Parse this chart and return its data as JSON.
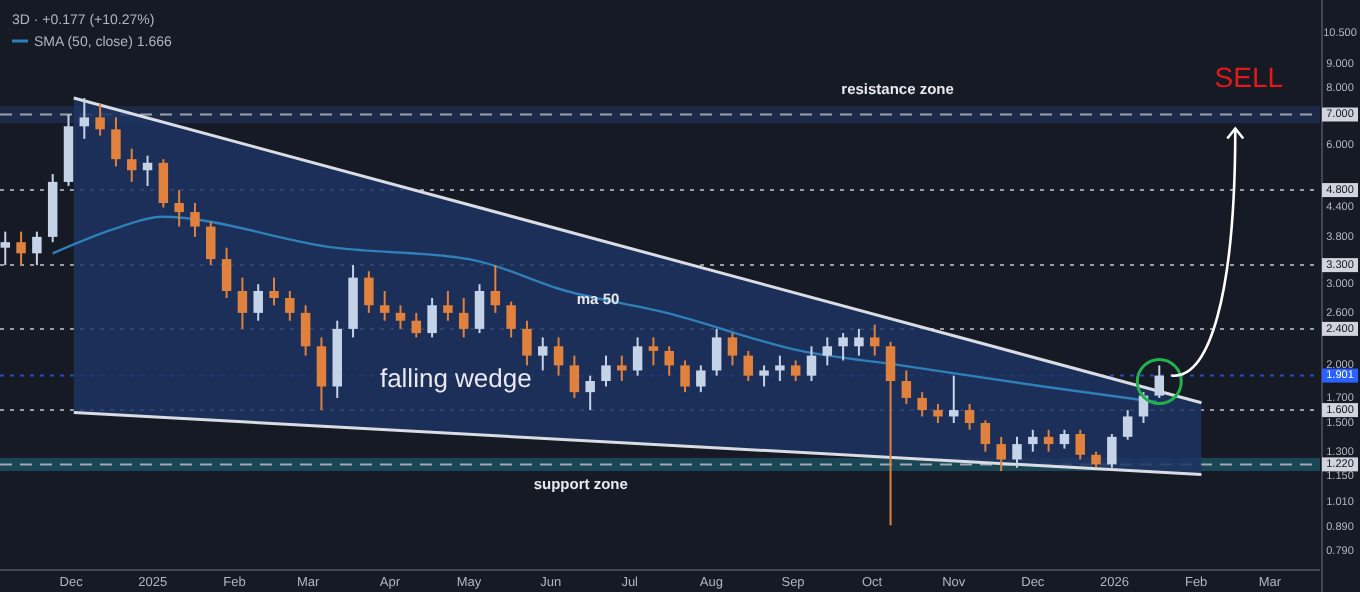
{
  "chart_data": {
    "type": "candlestick",
    "log": "y",
    "legend": "top left",
    "xlim": [
      "2024-11-04",
      "2026-03-20"
    ],
    "xticks": [
      {
        "value": "2024-12-01",
        "label": "Dec"
      },
      {
        "value": "2025-01-01",
        "label": "2025"
      },
      {
        "value": "2025-02-01",
        "label": "Feb"
      },
      {
        "value": "2025-03-01",
        "label": "Mar"
      },
      {
        "value": "2025-04-01",
        "label": "Apr"
      },
      {
        "value": "2025-05-01",
        "label": "May"
      },
      {
        "value": "2025-06-01",
        "label": "Jun"
      },
      {
        "value": "2025-07-01",
        "label": "Jul"
      },
      {
        "value": "2025-08-01",
        "label": "Aug"
      },
      {
        "value": "2025-09-01",
        "label": "Sep"
      },
      {
        "value": "2025-10-01",
        "label": "Oct"
      },
      {
        "value": "2025-11-01",
        "label": "Nov"
      },
      {
        "value": "2025-12-01",
        "label": "Dec"
      },
      {
        "value": "2026-01-01",
        "label": "2026"
      },
      {
        "value": "2026-02-01",
        "label": "Feb"
      },
      {
        "value": "2026-03-01",
        "label": "Mar"
      }
    ],
    "ylim": [
      0.72,
      12.4
    ],
    "yticks": [
      {
        "value": 10.5,
        "label": "10.500"
      },
      {
        "value": 9,
        "label": "9.000"
      },
      {
        "value": 8,
        "label": "8.000"
      },
      {
        "value": 6,
        "label": "6.000"
      },
      {
        "value": 4.4,
        "label": "4.400"
      },
      {
        "value": 3.8,
        "label": "3.800"
      },
      {
        "value": 3,
        "label": "3.000"
      },
      {
        "value": 2.6,
        "label": "2.600"
      },
      {
        "value": 2,
        "label": "2.000"
      },
      {
        "value": 1.7,
        "label": "1.700"
      },
      {
        "value": 1.5,
        "label": "1.500"
      },
      {
        "value": 1.3,
        "label": "1.300"
      },
      {
        "value": 1.15,
        "label": "1.150"
      },
      {
        "value": 1.01,
        "label": "1.010"
      },
      {
        "value": 0.89,
        "label": "0.890"
      },
      {
        "value": 0.79,
        "label": "0.790"
      }
    ],
    "bands": [
      {
        "axis": "y",
        "from": 6.7,
        "to": 7.3,
        "color": "#1c2a47",
        "label": "resistance zone"
      },
      {
        "axis": "y",
        "from": 1.18,
        "to": 1.26,
        "color": "#1b4655",
        "label": "support zone"
      }
    ],
    "ref_lines": [
      {
        "axis": "y",
        "value": 7,
        "label": "7.000",
        "color": "#d1d4dc",
        "line_style": "dashed"
      },
      {
        "axis": "y",
        "value": 4.8,
        "label": "4.800",
        "color": "#d1d4dc",
        "line_style": "dotted"
      },
      {
        "axis": "y",
        "value": 3.3,
        "label": "3.300",
        "color": "#d1d4dc",
        "line_style": "dotted"
      },
      {
        "axis": "y",
        "value": 2.4,
        "label": "2.400",
        "color": "#d1d4dc",
        "line_style": "dotted"
      },
      {
        "axis": "y",
        "value": 1.901,
        "label": "1.901",
        "color": "#2962ff",
        "line_style": "dotted"
      },
      {
        "axis": "y",
        "value": 1.6,
        "label": "1.600",
        "color": "#d1d4dc",
        "line_style": "dotted"
      },
      {
        "axis": "y",
        "value": 1.22,
        "label": "1.220",
        "color": "#d1d4dc",
        "line_style": "dashed"
      }
    ],
    "annotations": [
      "3D · +0.177 (+10.27%)",
      {
        "text": "falling wedge",
        "x": "2025-04-26",
        "y": 1.86
      },
      {
        "text": "ma 50",
        "x": "2025-06-19",
        "y": 2.77
      },
      {
        "text": "SELL",
        "x": "2026-02-21",
        "y": 7
      }
    ],
    "series": [
      {
        "type": "line",
        "color": "#d9dce3",
        "x": [
          "2024-12-02",
          "2026-02-03"
        ],
        "values": [
          7.6,
          1.66
        ]
      },
      {
        "type": "line",
        "color": "#d9dce3",
        "x": [
          "2024-12-02",
          "2026-02-03"
        ],
        "values": [
          1.58,
          1.16
        ]
      },
      {
        "type": "line",
        "name": "SMA (50, close) 1.666",
        "color": "#2f7fb8",
        "x": [
          "2024-11-24",
          "2024-12-20",
          "2025-01-04",
          "2025-03-11",
          "2025-05-01",
          "2025-06-07",
          "2025-07-15",
          "2025-09-04",
          "2025-10-12",
          "2025-12-05",
          "2026-01-17"
        ],
        "values": [
          3.5,
          4.0,
          4.2,
          3.6,
          3.4,
          2.9,
          2.6,
          2.15,
          2.0,
          1.8,
          1.666
        ]
      },
      {
        "x": [
          "2024-11-06",
          "2024-11-12",
          "2024-11-18",
          "2024-11-24",
          "2024-11-30",
          "2024-12-06",
          "2024-12-12",
          "2024-12-18",
          "2024-12-24",
          "2024-12-30",
          "2025-01-05",
          "2025-01-11",
          "2025-01-17",
          "2025-01-23",
          "2025-01-29",
          "2025-02-04",
          "2025-02-10",
          "2025-02-16",
          "2025-02-22",
          "2025-02-28",
          "2025-03-06",
          "2025-03-12",
          "2025-03-18",
          "2025-03-24",
          "2025-03-30",
          "2025-04-05",
          "2025-04-11",
          "2025-04-17",
          "2025-04-23",
          "2025-04-29",
          "2025-05-05",
          "2025-05-11",
          "2025-05-17",
          "2025-05-23",
          "2025-05-29",
          "2025-06-04",
          "2025-06-10",
          "2025-06-16",
          "2025-06-22",
          "2025-06-28",
          "2025-07-04",
          "2025-07-10",
          "2025-07-16",
          "2025-07-22",
          "2025-07-28",
          "2025-08-03",
          "2025-08-09",
          "2025-08-15",
          "2025-08-21",
          "2025-08-27",
          "2025-09-02",
          "2025-09-08",
          "2025-09-14",
          "2025-09-20",
          "2025-09-26",
          "2025-10-02",
          "2025-10-08",
          "2025-10-14",
          "2025-10-20",
          "2025-10-26",
          "2025-11-01",
          "2025-11-07",
          "2025-11-13",
          "2025-11-19",
          "2025-11-25",
          "2025-12-01",
          "2025-12-07",
          "2025-12-13",
          "2025-12-19",
          "2025-12-25",
          "2025-12-31",
          "2026-01-06",
          "2026-01-12",
          "2026-01-18"
        ],
        "ohlc": [
          [
            3.6,
            3.9,
            3.3,
            3.7
          ],
          [
            3.7,
            3.9,
            3.3,
            3.5
          ],
          [
            3.5,
            3.9,
            3.3,
            3.8
          ],
          [
            3.8,
            5.2,
            3.7,
            5.0
          ],
          [
            5.0,
            7.0,
            4.9,
            6.6
          ],
          [
            6.6,
            7.6,
            6.2,
            6.9
          ],
          [
            6.9,
            7.4,
            6.3,
            6.5
          ],
          [
            6.5,
            6.9,
            5.4,
            5.6
          ],
          [
            5.6,
            5.9,
            5.0,
            5.3
          ],
          [
            5.3,
            5.7,
            4.9,
            5.5
          ],
          [
            5.5,
            5.6,
            4.4,
            4.5
          ],
          [
            4.5,
            4.8,
            4.0,
            4.3
          ],
          [
            4.3,
            4.5,
            3.8,
            4.0
          ],
          [
            4.0,
            4.1,
            3.3,
            3.4
          ],
          [
            3.4,
            3.6,
            2.8,
            2.9
          ],
          [
            2.9,
            3.1,
            2.4,
            2.6
          ],
          [
            2.6,
            3.0,
            2.5,
            2.9
          ],
          [
            2.9,
            3.1,
            2.7,
            2.8
          ],
          [
            2.8,
            2.9,
            2.5,
            2.6
          ],
          [
            2.6,
            2.7,
            2.1,
            2.2
          ],
          [
            2.2,
            2.3,
            1.6,
            1.8
          ],
          [
            1.8,
            2.5,
            1.7,
            2.4
          ],
          [
            2.4,
            3.3,
            2.3,
            3.1
          ],
          [
            3.1,
            3.2,
            2.6,
            2.7
          ],
          [
            2.7,
            2.9,
            2.5,
            2.6
          ],
          [
            2.6,
            2.7,
            2.4,
            2.5
          ],
          [
            2.5,
            2.6,
            2.3,
            2.35
          ],
          [
            2.35,
            2.8,
            2.3,
            2.7
          ],
          [
            2.7,
            2.9,
            2.5,
            2.6
          ],
          [
            2.6,
            2.8,
            2.3,
            2.4
          ],
          [
            2.4,
            3.0,
            2.35,
            2.9
          ],
          [
            2.9,
            3.3,
            2.6,
            2.7
          ],
          [
            2.7,
            2.75,
            2.3,
            2.4
          ],
          [
            2.4,
            2.5,
            2.0,
            2.1
          ],
          [
            2.1,
            2.3,
            1.95,
            2.2
          ],
          [
            2.2,
            2.3,
            1.9,
            2.0
          ],
          [
            2.0,
            2.1,
            1.7,
            1.75
          ],
          [
            1.75,
            1.9,
            1.6,
            1.85
          ],
          [
            1.85,
            2.1,
            1.8,
            2.0
          ],
          [
            2.0,
            2.1,
            1.85,
            1.95
          ],
          [
            1.95,
            2.3,
            1.9,
            2.2
          ],
          [
            2.2,
            2.3,
            2.0,
            2.15
          ],
          [
            2.15,
            2.2,
            1.9,
            2.0
          ],
          [
            2.0,
            2.05,
            1.75,
            1.8
          ],
          [
            1.8,
            2.0,
            1.75,
            1.95
          ],
          [
            1.95,
            2.4,
            1.9,
            2.3
          ],
          [
            2.3,
            2.35,
            2.0,
            2.1
          ],
          [
            2.1,
            2.15,
            1.85,
            1.9
          ],
          [
            1.9,
            2.0,
            1.8,
            1.95
          ],
          [
            1.95,
            2.1,
            1.85,
            2.0
          ],
          [
            2.0,
            2.05,
            1.85,
            1.9
          ],
          [
            1.9,
            2.2,
            1.85,
            2.1
          ],
          [
            2.1,
            2.3,
            2.0,
            2.2
          ],
          [
            2.2,
            2.35,
            2.05,
            2.3
          ],
          [
            2.2,
            2.4,
            2.1,
            2.3
          ],
          [
            2.3,
            2.45,
            2.1,
            2.2
          ],
          [
            2.2,
            2.25,
            0.9,
            1.85
          ],
          [
            1.85,
            1.95,
            1.65,
            1.7
          ],
          [
            1.7,
            1.75,
            1.55,
            1.6
          ],
          [
            1.6,
            1.65,
            1.5,
            1.55
          ],
          [
            1.55,
            1.9,
            1.5,
            1.6
          ],
          [
            1.6,
            1.65,
            1.45,
            1.5
          ],
          [
            1.5,
            1.52,
            1.3,
            1.35
          ],
          [
            1.35,
            1.4,
            1.18,
            1.25
          ],
          [
            1.25,
            1.4,
            1.2,
            1.35
          ],
          [
            1.35,
            1.45,
            1.3,
            1.4
          ],
          [
            1.4,
            1.45,
            1.3,
            1.35
          ],
          [
            1.35,
            1.45,
            1.32,
            1.42
          ],
          [
            1.42,
            1.45,
            1.25,
            1.28
          ],
          [
            1.28,
            1.3,
            1.2,
            1.22
          ],
          [
            1.22,
            1.42,
            1.2,
            1.4
          ],
          [
            1.4,
            1.6,
            1.38,
            1.55
          ],
          [
            1.55,
            1.75,
            1.5,
            1.72
          ],
          [
            1.72,
            2.0,
            1.7,
            1.901
          ]
        ],
        "colors": [
          "#c5d3e8",
          "#e0823d",
          "#c5d3e8",
          "#c5d3e8",
          "#c5d3e8",
          "#c5d3e8",
          "#e0823d",
          "#e0823d",
          "#e0823d",
          "#c5d3e8",
          "#e0823d",
          "#e0823d",
          "#e0823d",
          "#e0823d",
          "#e0823d",
          "#e0823d",
          "#c5d3e8",
          "#e0823d",
          "#e0823d",
          "#e0823d",
          "#e0823d",
          "#c5d3e8",
          "#c5d3e8",
          "#e0823d",
          "#e0823d",
          "#e0823d",
          "#e0823d",
          "#c5d3e8",
          "#e0823d",
          "#e0823d",
          "#c5d3e8",
          "#e0823d",
          "#e0823d",
          "#e0823d",
          "#c5d3e8",
          "#e0823d",
          "#e0823d",
          "#c5d3e8",
          "#c5d3e8",
          "#e0823d",
          "#c5d3e8",
          "#e0823d",
          "#e0823d",
          "#e0823d",
          "#c5d3e8",
          "#c5d3e8",
          "#e0823d",
          "#e0823d",
          "#c5d3e8",
          "#c5d3e8",
          "#e0823d",
          "#c5d3e8",
          "#c5d3e8",
          "#c5d3e8",
          "#c5d3e8",
          "#e0823d",
          "#e0823d",
          "#e0823d",
          "#e0823d",
          "#e0823d",
          "#c5d3e8",
          "#e0823d",
          "#e0823d",
          "#e0823d",
          "#c5d3e8",
          "#c5d3e8",
          "#e0823d",
          "#c5d3e8",
          "#e0823d",
          "#e0823d",
          "#c5d3e8",
          "#c5d3e8",
          "#c5d3e8",
          "#c5d3e8"
        ]
      }
    ]
  }
}
